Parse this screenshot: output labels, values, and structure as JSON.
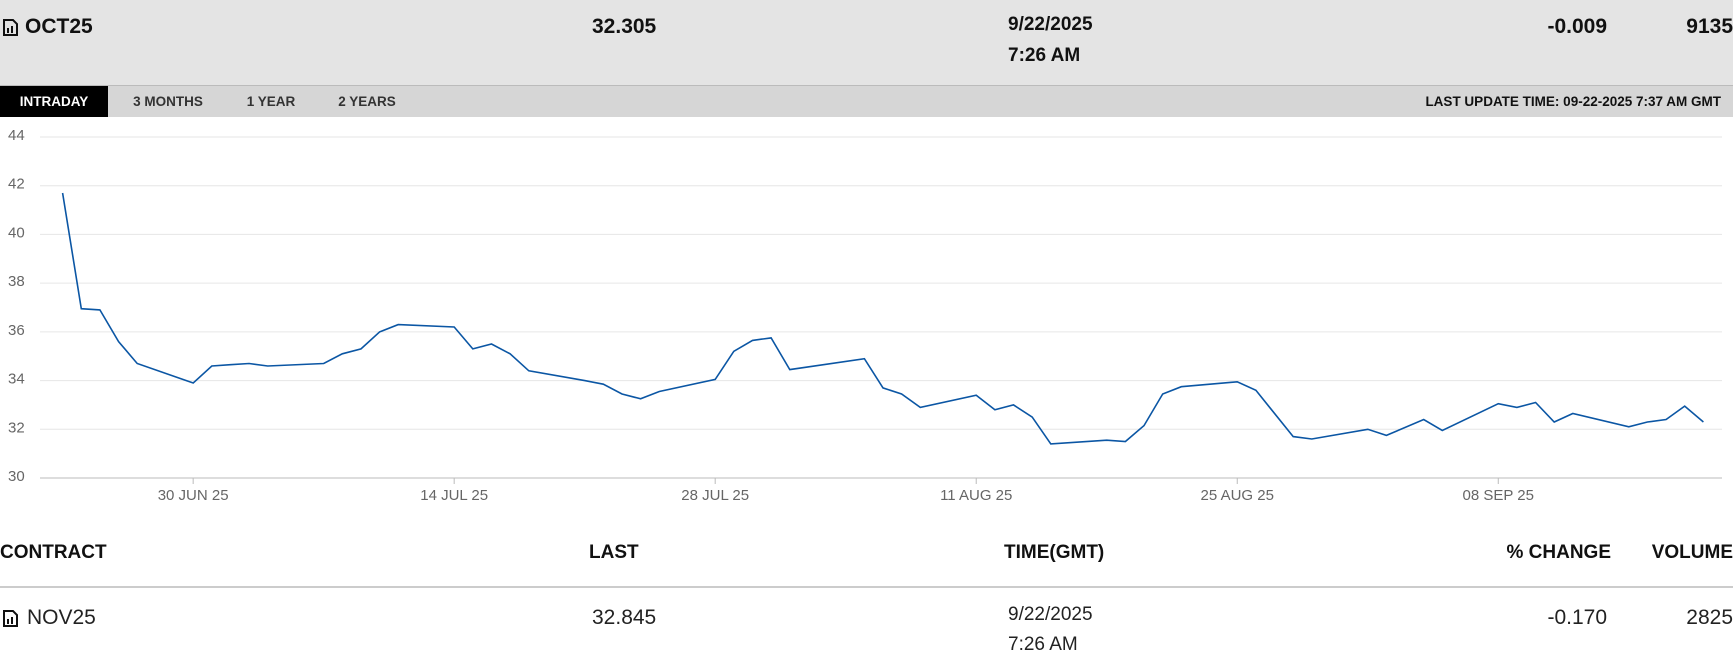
{
  "header": {
    "symbol": "OCT25",
    "last": "32.305",
    "date": "9/22/2025",
    "time": "7:26 AM",
    "change": "-0.009",
    "volume": "9135"
  },
  "tabs": [
    "INTRADAY",
    "3 MONTHS",
    "1 YEAR",
    "2 YEARS"
  ],
  "last_update": "LAST UPDATE TIME: 09-22-2025 7:37 AM GMT",
  "chart_data": {
    "type": "line",
    "x": [
      "2025-06-23",
      "2025-06-24",
      "2025-06-25",
      "2025-06-26",
      "2025-06-27",
      "2025-06-30",
      "2025-07-01",
      "2025-07-02",
      "2025-07-03",
      "2025-07-04",
      "2025-07-07",
      "2025-07-08",
      "2025-07-09",
      "2025-07-10",
      "2025-07-11",
      "2025-07-14",
      "2025-07-15",
      "2025-07-16",
      "2025-07-17",
      "2025-07-18",
      "2025-07-21",
      "2025-07-22",
      "2025-07-23",
      "2025-07-24",
      "2025-07-25",
      "2025-07-28",
      "2025-07-29",
      "2025-07-30",
      "2025-07-31",
      "2025-08-01",
      "2025-08-05",
      "2025-08-06",
      "2025-08-07",
      "2025-08-08",
      "2025-08-11",
      "2025-08-12",
      "2025-08-13",
      "2025-08-14",
      "2025-08-15",
      "2025-08-18",
      "2025-08-19",
      "2025-08-20",
      "2025-08-21",
      "2025-08-22",
      "2025-08-25",
      "2025-08-26",
      "2025-08-28",
      "2025-08-29",
      "2025-09-01",
      "2025-09-02",
      "2025-09-04",
      "2025-09-05",
      "2025-09-08",
      "2025-09-09",
      "2025-09-10",
      "2025-09-11",
      "2025-09-12",
      "2025-09-15",
      "2025-09-16",
      "2025-09-17",
      "2025-09-18",
      "2025-09-19"
    ],
    "series": [
      {
        "name": "OCT25",
        "color": "#0b56a4",
        "values": [
          41.7,
          36.95,
          36.9,
          35.6,
          34.7,
          33.9,
          34.6,
          34.65,
          34.7,
          34.6,
          34.7,
          35.1,
          35.3,
          36.0,
          36.3,
          36.2,
          35.3,
          35.5,
          35.1,
          34.4,
          34.0,
          33.85,
          33.45,
          33.25,
          33.55,
          34.05,
          35.2,
          35.65,
          35.75,
          34.45,
          34.9,
          33.7,
          33.45,
          32.9,
          33.4,
          32.8,
          33.0,
          32.5,
          31.4,
          31.55,
          31.5,
          32.15,
          33.45,
          33.75,
          33.95,
          33.6,
          31.7,
          31.6,
          32.0,
          31.75,
          32.4,
          31.95,
          33.05,
          32.9,
          33.1,
          32.3,
          32.65,
          32.1,
          32.3,
          32.4,
          32.95,
          32.3
        ]
      }
    ],
    "xlim": [
      "2025-06-22",
      "2025-09-20"
    ],
    "xticks": [
      {
        "value": "2025-06-30",
        "label": "30 JUN 25"
      },
      {
        "value": "2025-07-14",
        "label": "14 JUL 25"
      },
      {
        "value": "2025-07-28",
        "label": "28 JUL 25"
      },
      {
        "value": "2025-08-11",
        "label": "11 AUG 25"
      },
      {
        "value": "2025-08-25",
        "label": "25 AUG 25"
      },
      {
        "value": "2025-09-08",
        "label": "08 SEP 25"
      }
    ],
    "ylim": [
      30,
      44
    ],
    "yticks": [
      30,
      32,
      34,
      36,
      38,
      40,
      42,
      44
    ],
    "grid": true
  },
  "table": {
    "columns": [
      "CONTRACT",
      "LAST",
      "TIME(GMT)",
      "% CHANGE",
      "VOLUME"
    ],
    "rows": [
      {
        "contract": "NOV25",
        "last": "32.845",
        "date": "9/22/2025",
        "time": "7:26 AM",
        "change": "-0.170",
        "volume": "2825"
      }
    ]
  }
}
